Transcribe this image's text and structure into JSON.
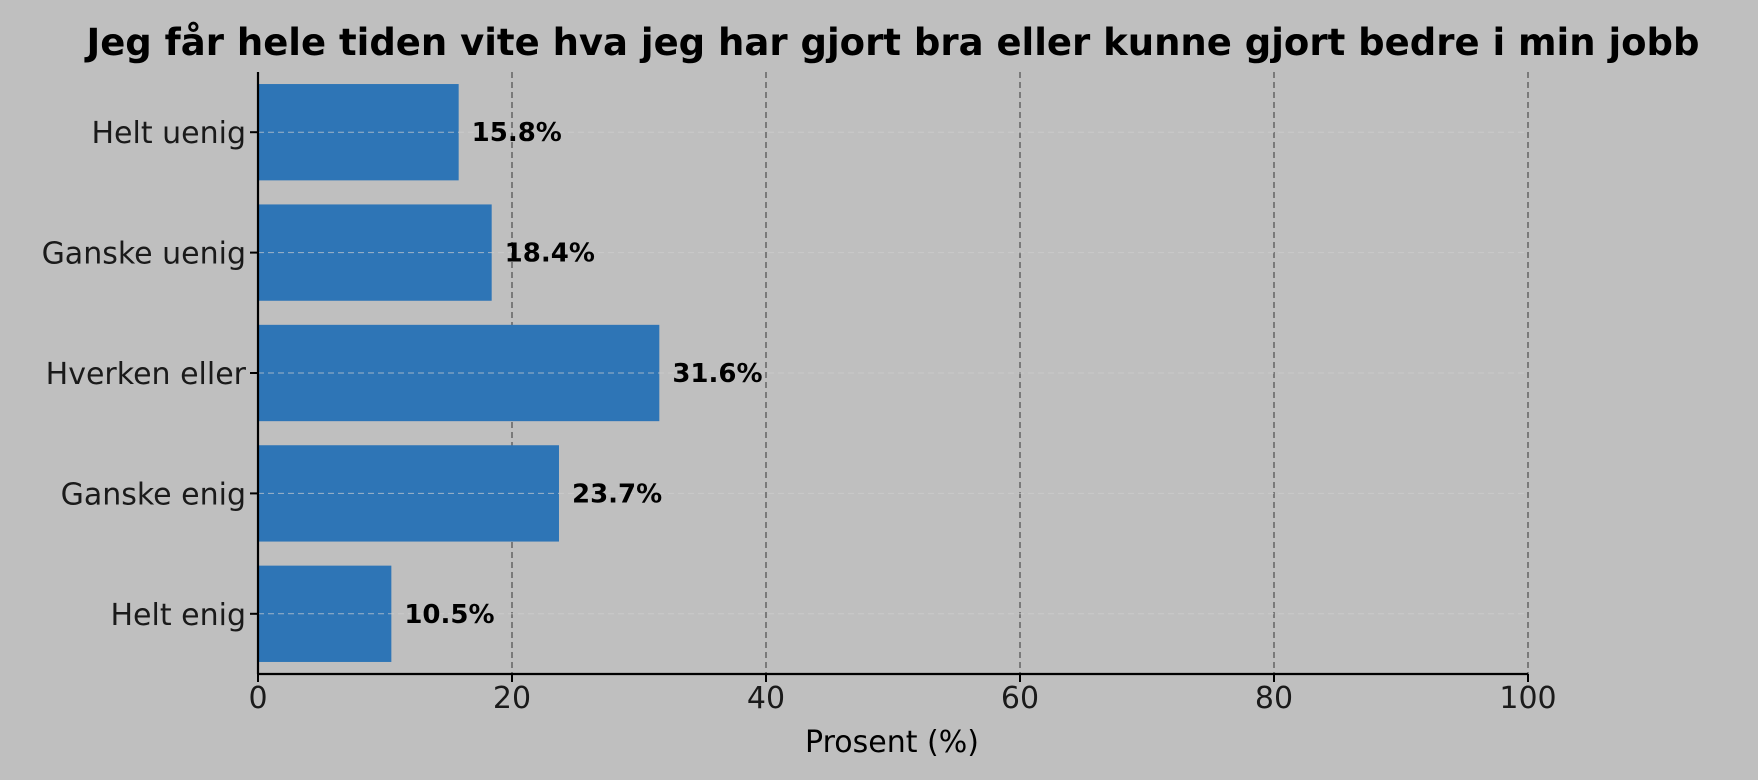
{
  "chart_data": {
    "type": "bar",
    "orientation": "horizontal",
    "title": "Jeg får hele tiden vite hva jeg har gjort bra eller kunne gjort bedre i min jobb",
    "xlabel": "Prosent (%)",
    "ylabel": "",
    "categories": [
      "Helt uenig",
      "Ganske uenig",
      "Hverken eller",
      "Ganske enig",
      "Helt enig"
    ],
    "values": [
      15.8,
      18.4,
      31.6,
      23.7,
      10.5
    ],
    "value_labels": [
      "15.8%",
      "18.4%",
      "31.6%",
      "23.7%",
      "10.5%"
    ],
    "xlim": [
      0,
      100
    ],
    "xticks": [
      0,
      20,
      40,
      60,
      80,
      100
    ],
    "xtick_labels": [
      "0",
      "20",
      "40",
      "60",
      "80",
      "100"
    ],
    "grid": true,
    "colors": {
      "background": "#bfbfbf",
      "bar": "#2e75b6",
      "axis": "#000000",
      "grid_vertical": "#555555",
      "grid_horizontal": "#d0d0d0"
    }
  }
}
